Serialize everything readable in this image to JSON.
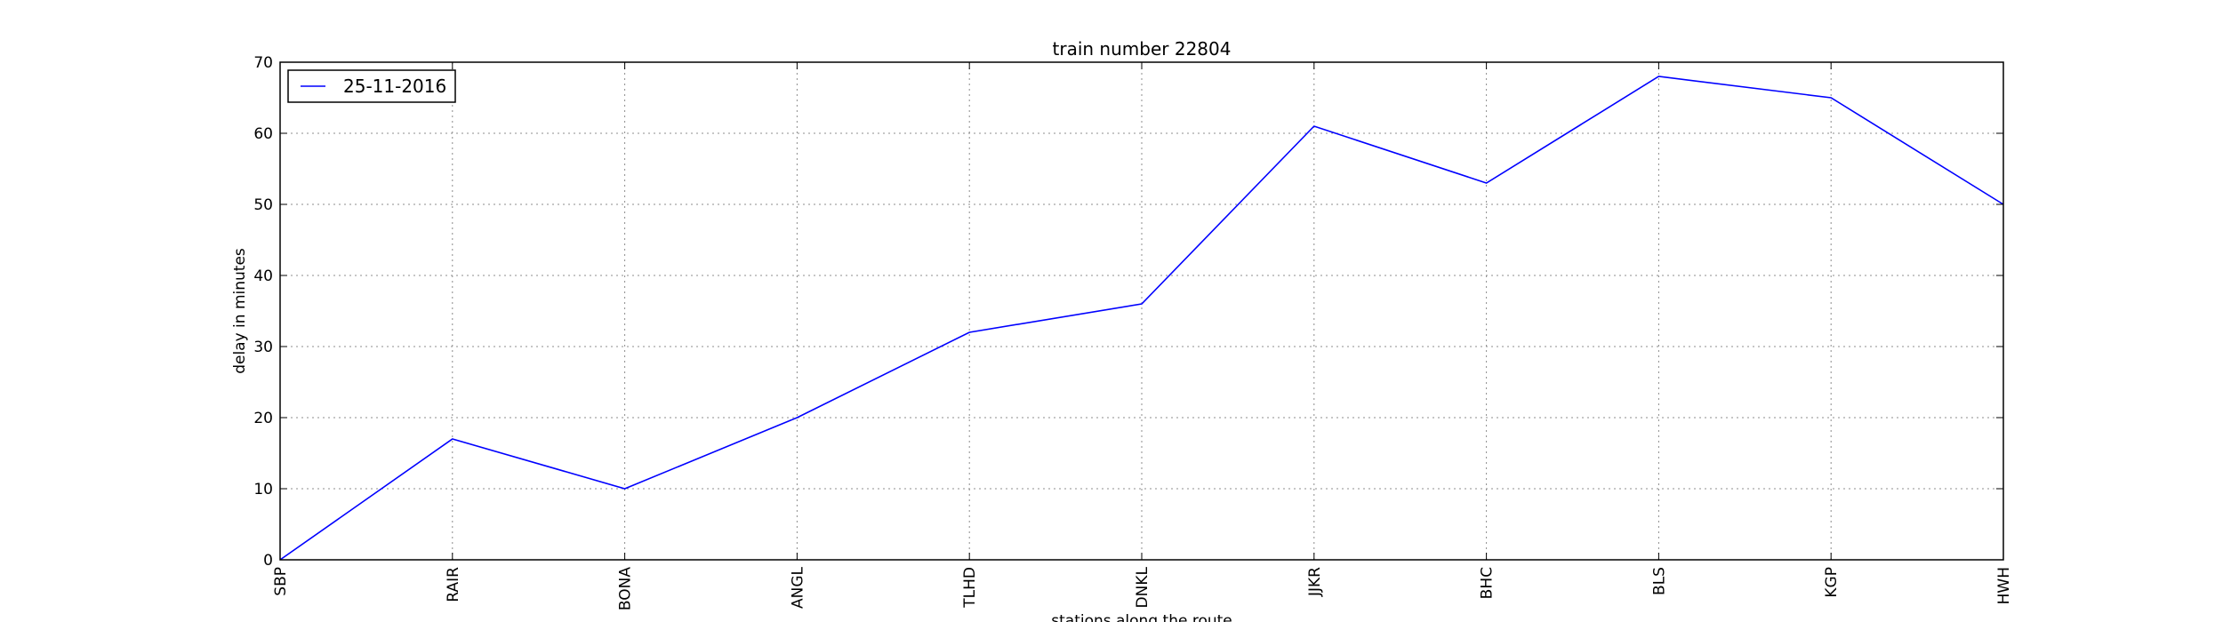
{
  "chart_data": {
    "type": "line",
    "title": "train number 22804",
    "xlabel": "stations along the route",
    "ylabel": "delay in minutes",
    "categories": [
      "SBP",
      "RAIR",
      "BONA",
      "ANGL",
      "TLHD",
      "DNKL",
      "JJKR",
      "BHC",
      "BLS",
      "KGP",
      "HWH"
    ],
    "series": [
      {
        "name": "25-11-2016",
        "color": "#0000ff",
        "values": [
          0,
          17,
          10,
          20,
          32,
          36,
          61,
          53,
          68,
          65,
          50
        ]
      }
    ],
    "ylim": [
      0,
      70
    ],
    "yticks": [
      0,
      10,
      20,
      30,
      40,
      50,
      60,
      70
    ],
    "grid": true,
    "legend_position": "top-left"
  }
}
